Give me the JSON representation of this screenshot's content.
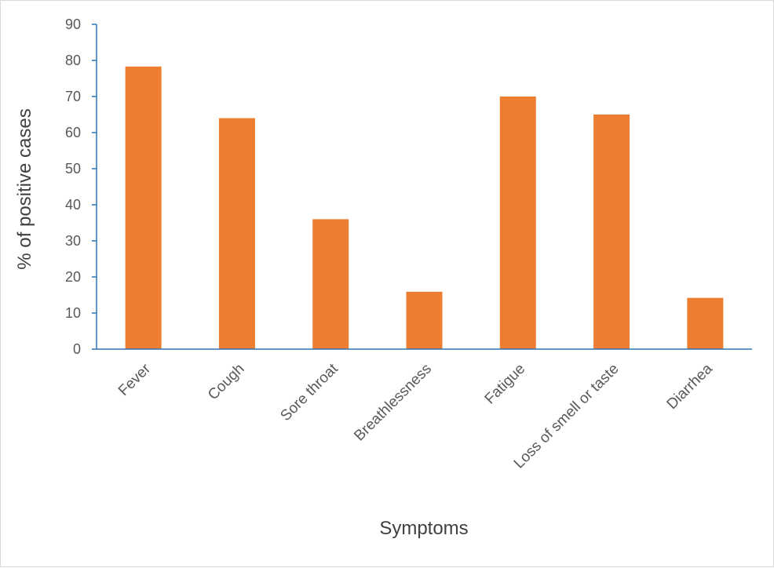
{
  "chart_data": {
    "type": "bar",
    "title": "",
    "xlabel": "Symptoms",
    "ylabel": "% of positive cases",
    "categories": [
      "Fever",
      "Cough",
      "Sore throat",
      "Breathlessness",
      "Fatigue",
      "Loss of smell or taste",
      "Diarrhea"
    ],
    "values": [
      78.3,
      64,
      36,
      15.9,
      70,
      65,
      14.2
    ],
    "ylim": [
      0,
      90
    ],
    "yticks": [
      0,
      10,
      20,
      30,
      40,
      50,
      60,
      70,
      80,
      90
    ],
    "grid": false,
    "legend": "none",
    "colors": {
      "bar": "#ed7d31",
      "axis": "#2e75b6"
    }
  }
}
